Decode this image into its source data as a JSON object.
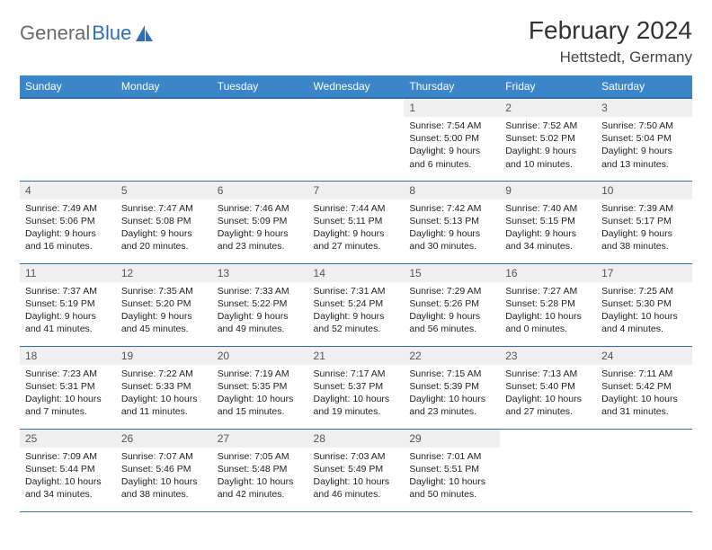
{
  "brand": {
    "part1": "General",
    "part2": "Blue"
  },
  "title": "February 2024",
  "location": "Hettstedt, Germany",
  "colors": {
    "header_bg": "#3a86c8",
    "rule": "#2c6fb3",
    "daynum_bg": "#efefef",
    "text": "#222222",
    "page_bg": "#ffffff"
  },
  "typography": {
    "title_fontsize": 28,
    "location_fontsize": 17,
    "header_fontsize": 12,
    "daynum_fontsize": 12,
    "body_fontsize": 10.5
  },
  "layout": {
    "columns": 7,
    "rows": 5,
    "month_start_weekday_index": 4
  },
  "weekday_headers": [
    "Sunday",
    "Monday",
    "Tuesday",
    "Wednesday",
    "Thursday",
    "Friday",
    "Saturday"
  ],
  "days": [
    {
      "num": "1",
      "sunrise": "7:54 AM",
      "sunset": "5:00 PM",
      "daylight": "9 hours and 6 minutes."
    },
    {
      "num": "2",
      "sunrise": "7:52 AM",
      "sunset": "5:02 PM",
      "daylight": "9 hours and 10 minutes."
    },
    {
      "num": "3",
      "sunrise": "7:50 AM",
      "sunset": "5:04 PM",
      "daylight": "9 hours and 13 minutes."
    },
    {
      "num": "4",
      "sunrise": "7:49 AM",
      "sunset": "5:06 PM",
      "daylight": "9 hours and 16 minutes."
    },
    {
      "num": "5",
      "sunrise": "7:47 AM",
      "sunset": "5:08 PM",
      "daylight": "9 hours and 20 minutes."
    },
    {
      "num": "6",
      "sunrise": "7:46 AM",
      "sunset": "5:09 PM",
      "daylight": "9 hours and 23 minutes."
    },
    {
      "num": "7",
      "sunrise": "7:44 AM",
      "sunset": "5:11 PM",
      "daylight": "9 hours and 27 minutes."
    },
    {
      "num": "8",
      "sunrise": "7:42 AM",
      "sunset": "5:13 PM",
      "daylight": "9 hours and 30 minutes."
    },
    {
      "num": "9",
      "sunrise": "7:40 AM",
      "sunset": "5:15 PM",
      "daylight": "9 hours and 34 minutes."
    },
    {
      "num": "10",
      "sunrise": "7:39 AM",
      "sunset": "5:17 PM",
      "daylight": "9 hours and 38 minutes."
    },
    {
      "num": "11",
      "sunrise": "7:37 AM",
      "sunset": "5:19 PM",
      "daylight": "9 hours and 41 minutes."
    },
    {
      "num": "12",
      "sunrise": "7:35 AM",
      "sunset": "5:20 PM",
      "daylight": "9 hours and 45 minutes."
    },
    {
      "num": "13",
      "sunrise": "7:33 AM",
      "sunset": "5:22 PM",
      "daylight": "9 hours and 49 minutes."
    },
    {
      "num": "14",
      "sunrise": "7:31 AM",
      "sunset": "5:24 PM",
      "daylight": "9 hours and 52 minutes."
    },
    {
      "num": "15",
      "sunrise": "7:29 AM",
      "sunset": "5:26 PM",
      "daylight": "9 hours and 56 minutes."
    },
    {
      "num": "16",
      "sunrise": "7:27 AM",
      "sunset": "5:28 PM",
      "daylight": "10 hours and 0 minutes."
    },
    {
      "num": "17",
      "sunrise": "7:25 AM",
      "sunset": "5:30 PM",
      "daylight": "10 hours and 4 minutes."
    },
    {
      "num": "18",
      "sunrise": "7:23 AM",
      "sunset": "5:31 PM",
      "daylight": "10 hours and 7 minutes."
    },
    {
      "num": "19",
      "sunrise": "7:22 AM",
      "sunset": "5:33 PM",
      "daylight": "10 hours and 11 minutes."
    },
    {
      "num": "20",
      "sunrise": "7:19 AM",
      "sunset": "5:35 PM",
      "daylight": "10 hours and 15 minutes."
    },
    {
      "num": "21",
      "sunrise": "7:17 AM",
      "sunset": "5:37 PM",
      "daylight": "10 hours and 19 minutes."
    },
    {
      "num": "22",
      "sunrise": "7:15 AM",
      "sunset": "5:39 PM",
      "daylight": "10 hours and 23 minutes."
    },
    {
      "num": "23",
      "sunrise": "7:13 AM",
      "sunset": "5:40 PM",
      "daylight": "10 hours and 27 minutes."
    },
    {
      "num": "24",
      "sunrise": "7:11 AM",
      "sunset": "5:42 PM",
      "daylight": "10 hours and 31 minutes."
    },
    {
      "num": "25",
      "sunrise": "7:09 AM",
      "sunset": "5:44 PM",
      "daylight": "10 hours and 34 minutes."
    },
    {
      "num": "26",
      "sunrise": "7:07 AM",
      "sunset": "5:46 PM",
      "daylight": "10 hours and 38 minutes."
    },
    {
      "num": "27",
      "sunrise": "7:05 AM",
      "sunset": "5:48 PM",
      "daylight": "10 hours and 42 minutes."
    },
    {
      "num": "28",
      "sunrise": "7:03 AM",
      "sunset": "5:49 PM",
      "daylight": "10 hours and 46 minutes."
    },
    {
      "num": "29",
      "sunrise": "7:01 AM",
      "sunset": "5:51 PM",
      "daylight": "10 hours and 50 minutes."
    }
  ],
  "labels": {
    "sunrise": "Sunrise:",
    "sunset": "Sunset:",
    "daylight": "Daylight:"
  }
}
